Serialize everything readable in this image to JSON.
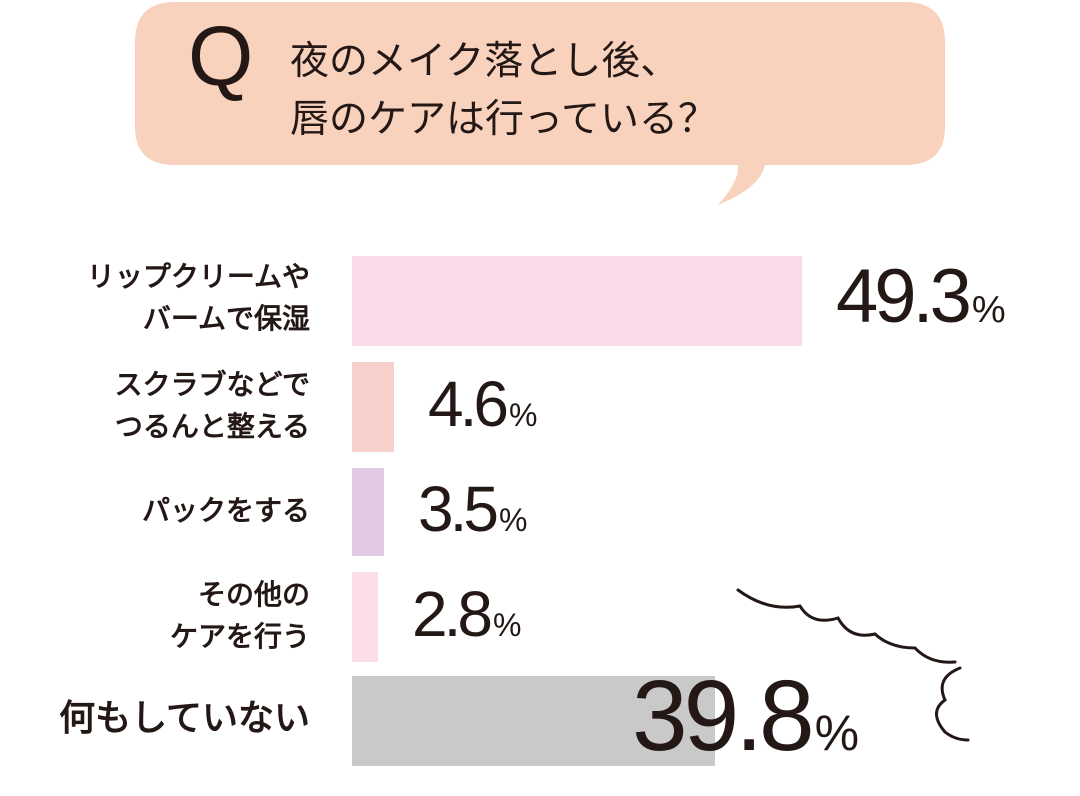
{
  "question": {
    "mark": "Q",
    "line1": "夜のメイク落とし後、",
    "line2": "唇のケアは行っている？"
  },
  "colors": {
    "bubble": "#f9d2bd",
    "text": "#231815",
    "burst_stroke": "#231815"
  },
  "chart_data": {
    "type": "bar",
    "orientation": "horizontal",
    "unit": "%",
    "categories": [
      [
        "リップクリームや",
        "バームで保湿"
      ],
      [
        "スクラブなどで",
        "つるんと整える"
      ],
      [
        "パックをする"
      ],
      [
        "その他の",
        "ケアを行う"
      ],
      [
        "何もしていない"
      ]
    ],
    "values": [
      49.3,
      4.6,
      3.5,
      2.8,
      39.8
    ],
    "value_labels": [
      "49.3",
      "4.6",
      "3.5",
      "2.8",
      "39.8"
    ],
    "bar_colors": [
      "#f9dbe9",
      "#f6d1cc",
      "#e0c9e1",
      "#fadde8",
      "#c9c9c9"
    ],
    "emphasized_category_index": 4
  }
}
